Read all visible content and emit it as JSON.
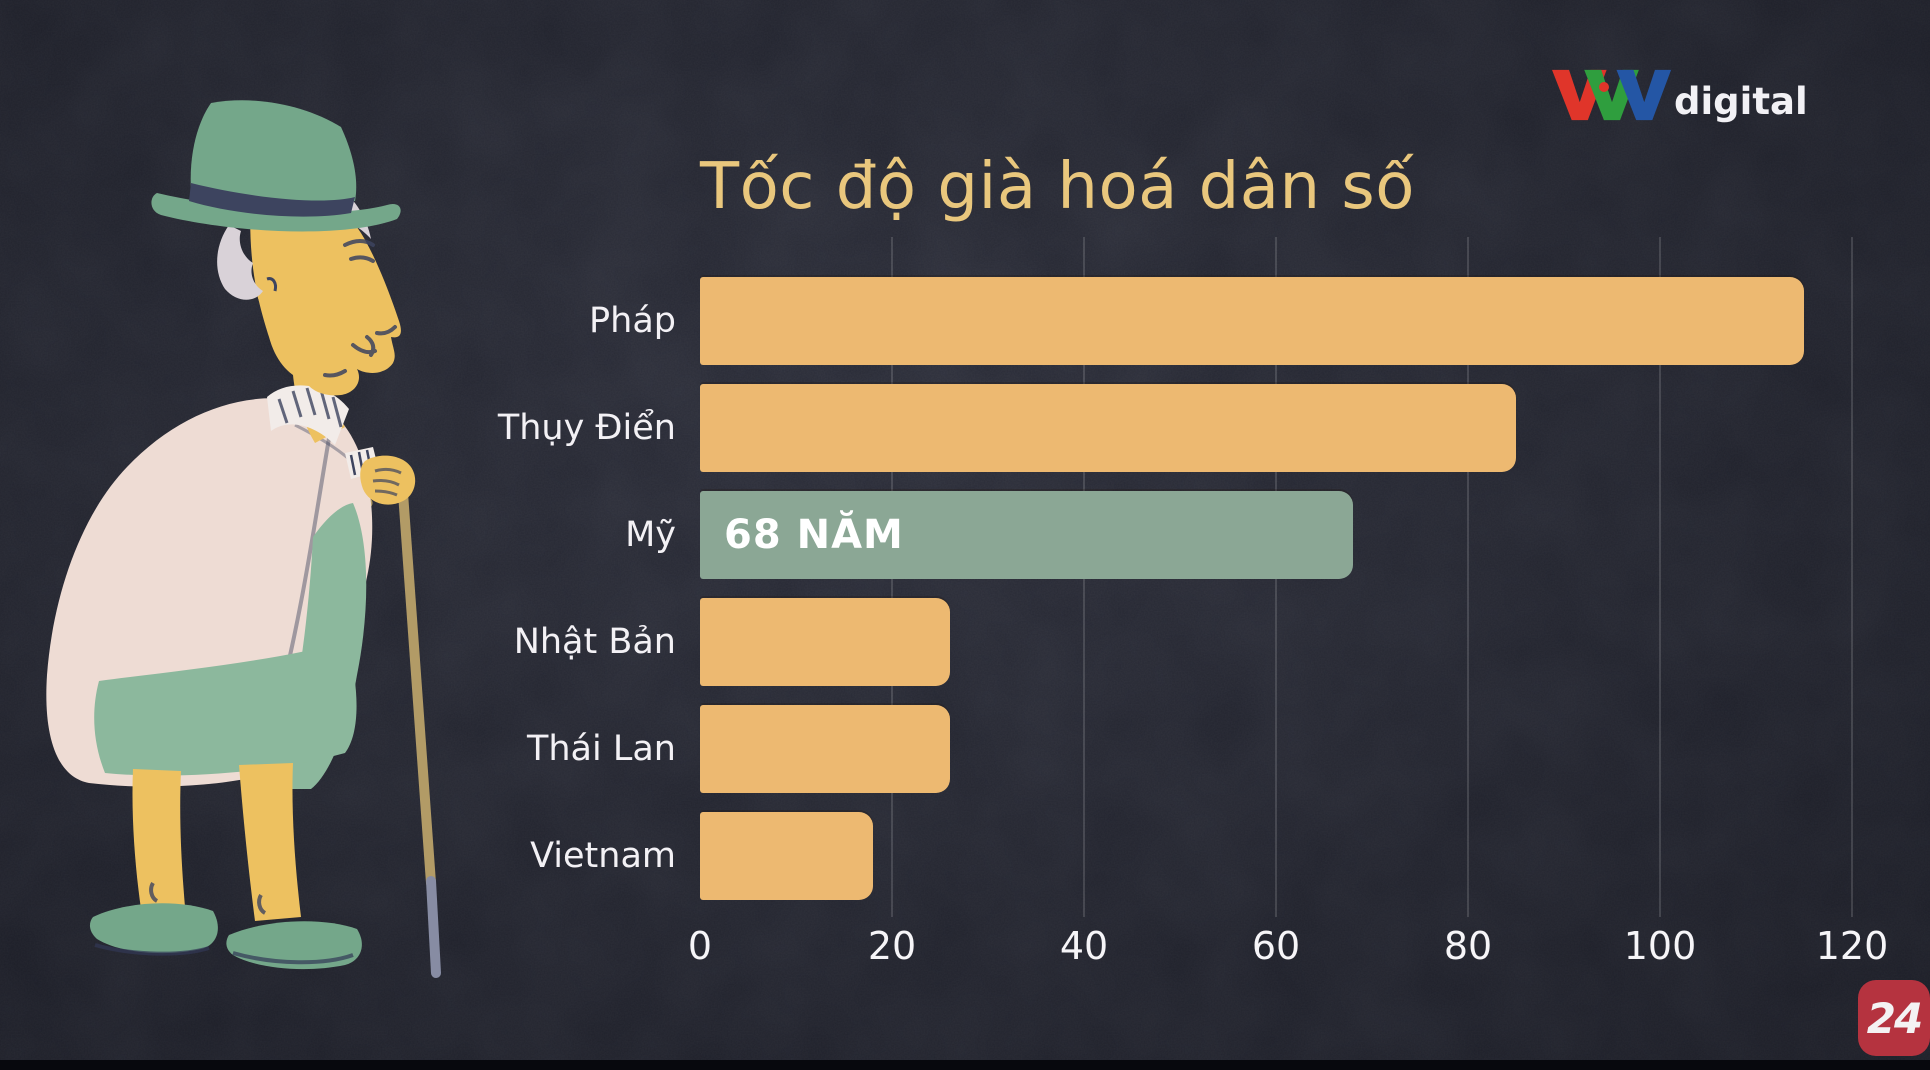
{
  "palette": {
    "background": "#20222e",
    "title": "#e9c77d",
    "text": "#f3f1f5"
  },
  "logo": {
    "text": "VTV",
    "suffix": "digital",
    "letter_colors": [
      "#e0352a",
      "#2f9e3e",
      "#2456a5"
    ],
    "g_dot_color": "#e0352a"
  },
  "chart_data": {
    "type": "bar",
    "orientation": "horizontal",
    "title": "Tốc độ già hoá dân số",
    "categories": [
      "Pháp",
      "Thụy Điển",
      "Mỹ",
      "Nhật Bản",
      "Thái Lan",
      "Vietnam"
    ],
    "values": [
      115,
      85,
      68,
      26,
      26,
      18
    ],
    "unit": "năm",
    "annotations": [
      {
        "category": "Mỹ",
        "label": "68 NĂM"
      }
    ],
    "x_ticks": [
      0,
      20,
      40,
      60,
      80,
      100,
      120
    ],
    "xlim": [
      0,
      120
    ],
    "grid": true,
    "legend": false,
    "highlight_index": 2,
    "colors": {
      "default": "#edb971",
      "highlight": "#8ba795"
    }
  },
  "badge": {
    "label": "24",
    "background": "#b5333f"
  },
  "illustration": {
    "name": "elderly-woman-walking-with-cane"
  }
}
